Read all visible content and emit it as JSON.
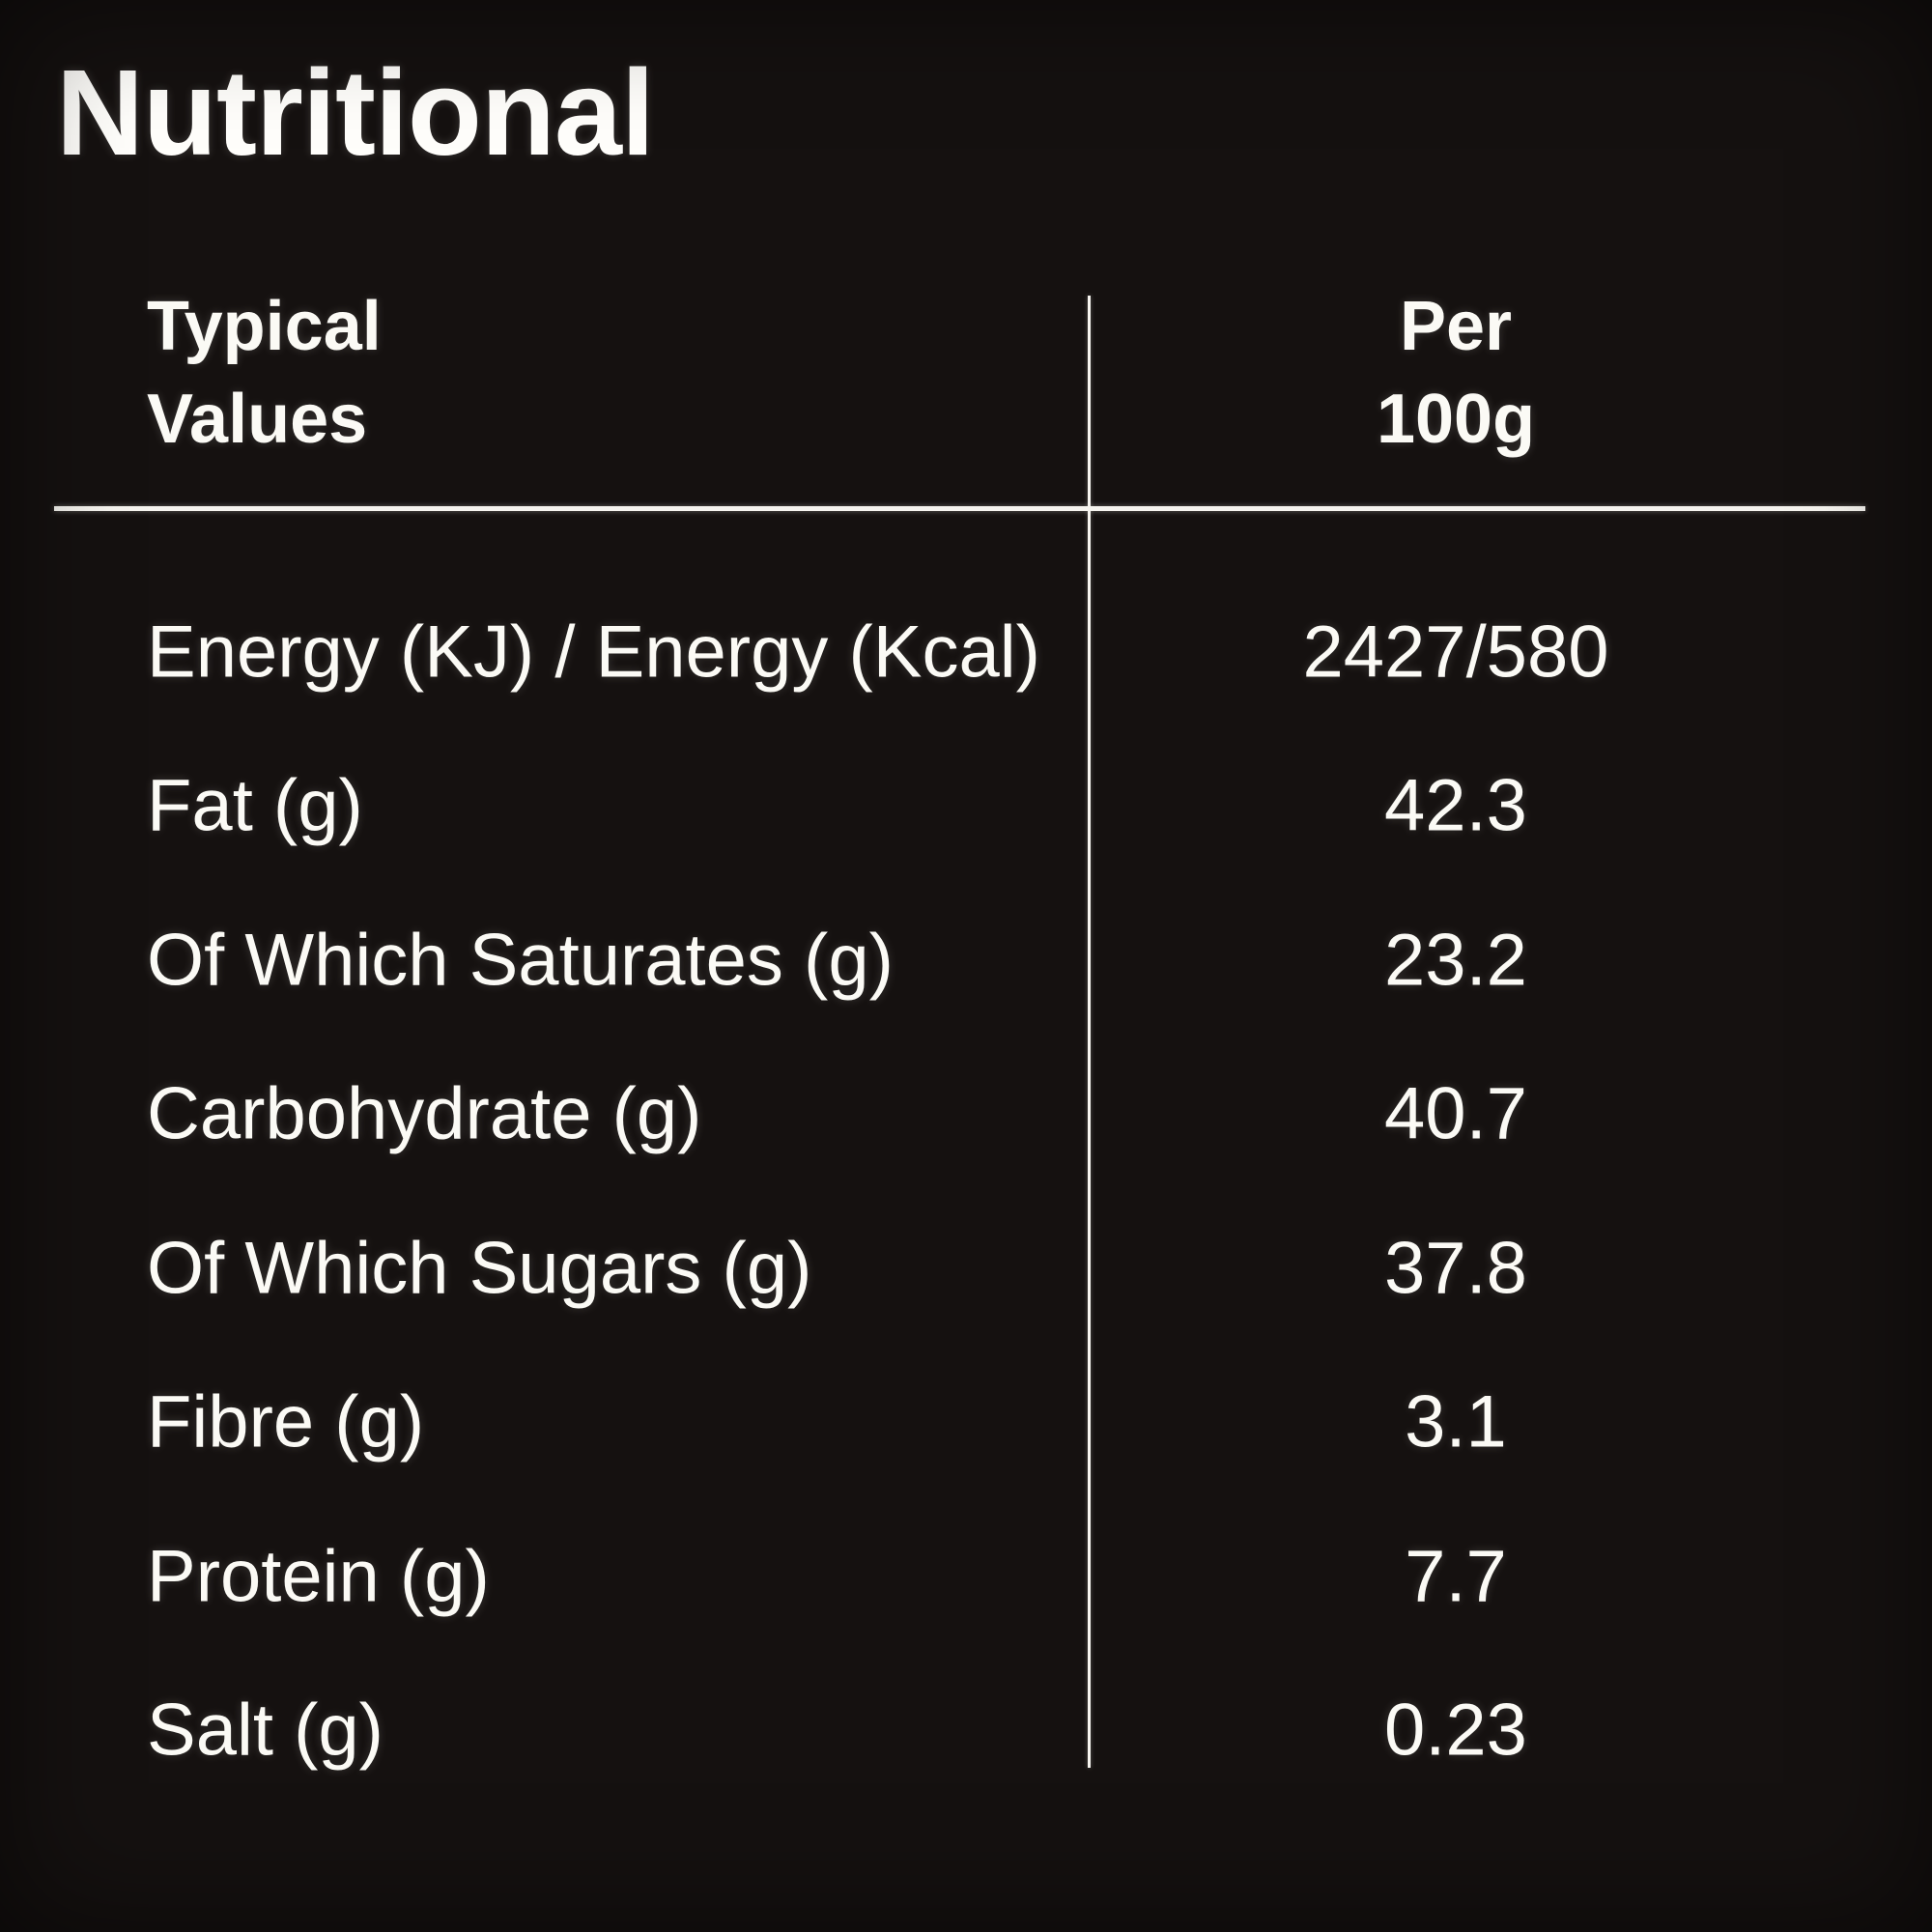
{
  "title": "Nutritional",
  "table": {
    "columns": [
      "Typical\nValues",
      "Per\n100g"
    ],
    "rows": [
      {
        "label": "Energy (KJ) / Energy (Kcal)",
        "value": "2427/580"
      },
      {
        "label": "Fat (g)",
        "value": "42.3"
      },
      {
        "label": "Of Which Saturates (g)",
        "value": "23.2"
      },
      {
        "label": "Carbohydrate (g)",
        "value": "40.7"
      },
      {
        "label": "Of Which Sugars (g)",
        "value": "37.8"
      },
      {
        "label": "Fibre (g)",
        "value": "3.1"
      },
      {
        "label": "Protein (g)",
        "value": "7.7"
      },
      {
        "label": "Salt (g)",
        "value": "0.23"
      }
    ]
  },
  "colors": {
    "background": "#151110",
    "text": "#fbfaf5",
    "line": "#f6f4ef"
  }
}
